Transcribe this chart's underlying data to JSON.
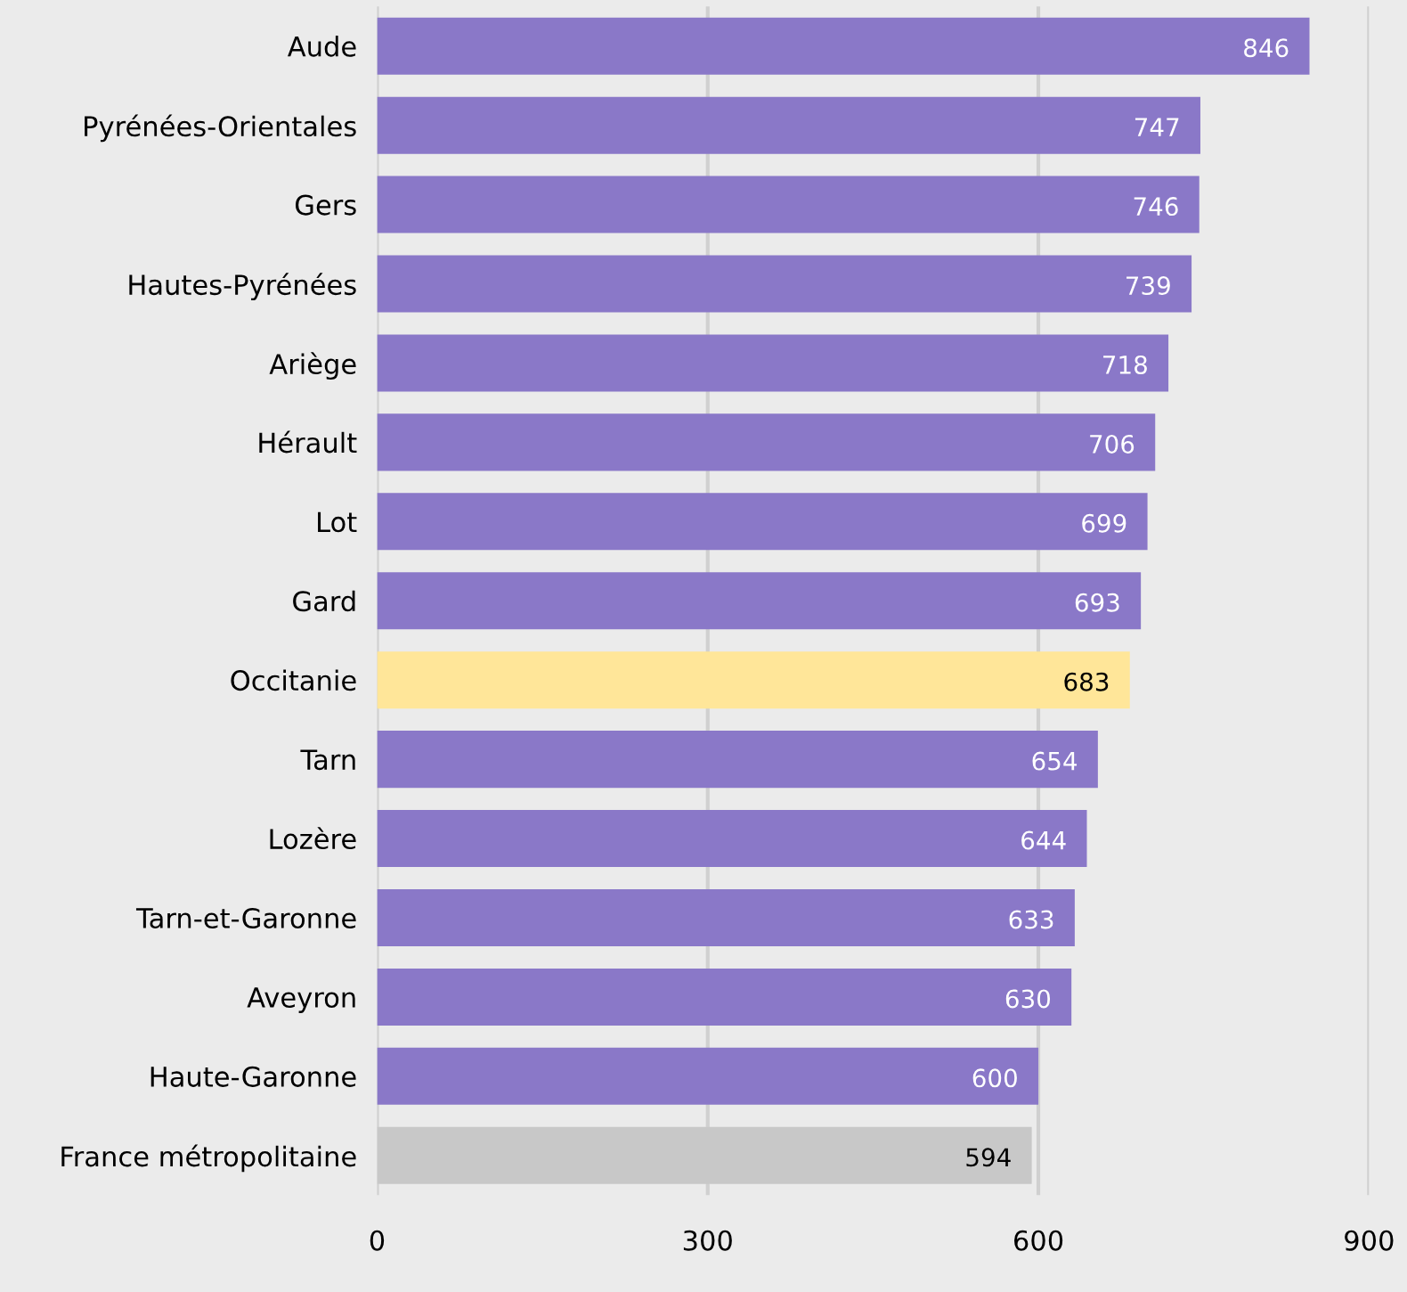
{
  "chart_data": {
    "type": "bar",
    "orientation": "horizontal",
    "categories": [
      "Aude",
      "Pyrénées-Orientales",
      "Gers",
      "Hautes-Pyrénées",
      "Ariège",
      "Hérault",
      "Lot",
      "Gard",
      "Occitanie",
      "Tarn",
      "Lozère",
      "Tarn-et-Garonne",
      "Aveyron",
      "Haute-Garonne",
      "France métropolitaine"
    ],
    "values": [
      846,
      747,
      746,
      739,
      718,
      706,
      699,
      693,
      683,
      654,
      644,
      633,
      630,
      600,
      594
    ],
    "colors": [
      "#8a78c8",
      "#8a78c8",
      "#8a78c8",
      "#8a78c8",
      "#8a78c8",
      "#8a78c8",
      "#8a78c8",
      "#8a78c8",
      "#ffe699",
      "#8a78c8",
      "#8a78c8",
      "#8a78c8",
      "#8a78c8",
      "#8a78c8",
      "#c8c8c8"
    ],
    "xlim": [
      0,
      900
    ],
    "xticks": [
      0,
      300,
      600,
      900
    ],
    "grid": "x",
    "data_labels": true
  }
}
